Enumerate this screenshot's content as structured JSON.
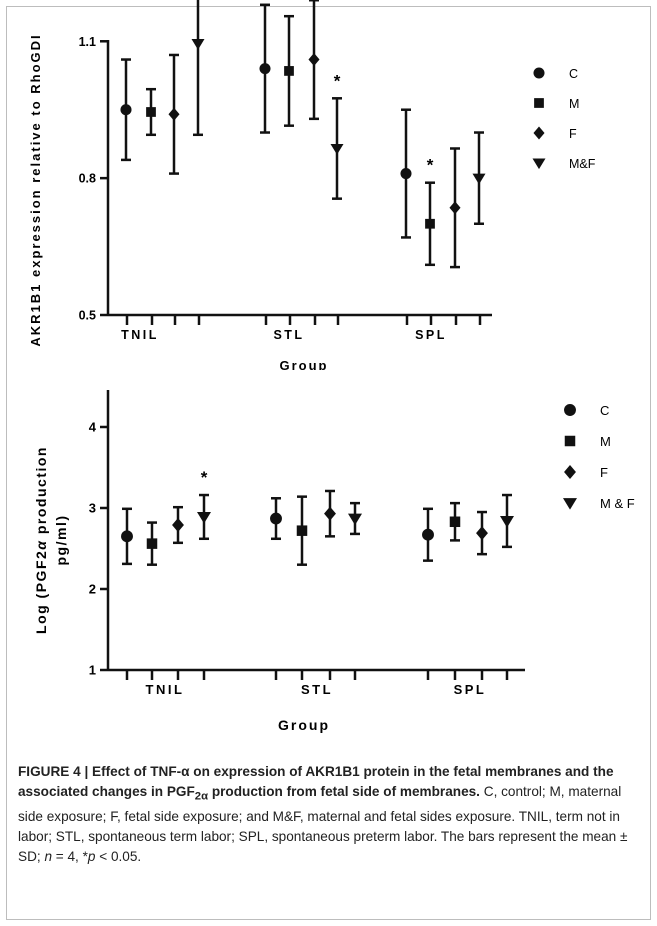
{
  "chart_data": [
    {
      "type": "scatter",
      "title": "",
      "xlabel": "Group",
      "ylabel": "AKR1B1 expression relative to RhoGDI",
      "ylim": [
        0.5,
        1.5
      ],
      "yticks": [
        "0.5",
        "0.8",
        "1.1"
      ],
      "categories": [
        "TNIL",
        "STL",
        "SPL"
      ],
      "legend_position": "top-right",
      "series": [
        {
          "name": "C",
          "marker": "circle",
          "values": [
            0.95,
            1.04,
            0.81
          ],
          "sd": [
            0.11,
            0.14,
            0.14
          ]
        },
        {
          "name": "M",
          "marker": "square",
          "values": [
            0.945,
            1.035,
            0.7
          ],
          "sd": [
            0.05,
            0.12,
            0.09
          ]
        },
        {
          "name": "F",
          "marker": "diamond",
          "values": [
            0.94,
            1.06,
            0.735
          ],
          "sd": [
            0.13,
            0.13,
            0.13
          ]
        },
        {
          "name": "M&F",
          "marker": "triangle-down",
          "values": [
            1.095,
            0.865,
            0.8
          ],
          "sd": [
            0.2,
            0.11,
            0.1
          ]
        }
      ],
      "significance": [
        {
          "series": "M&F",
          "category": "TNIL",
          "text": "*"
        },
        {
          "series": "M&F",
          "category": "STL",
          "text": "*"
        },
        {
          "series": "M",
          "category": "SPL",
          "text": "*"
        }
      ]
    },
    {
      "type": "scatter",
      "title": "",
      "xlabel": "Group",
      "ylabel_main": "Log (PGF2",
      "ylabel_alpha": "α",
      "ylabel_rest": " production",
      "ylabel_line2": "pg/ml)",
      "ylim": [
        1,
        4.5
      ],
      "yticks": [
        "1",
        "2",
        "3",
        "4"
      ],
      "categories": [
        "TNIL",
        "STL",
        "SPL"
      ],
      "legend_position": "top-right",
      "series": [
        {
          "name": "C",
          "marker": "circle",
          "values": [
            2.65,
            2.87,
            2.67
          ],
          "sd": [
            0.34,
            0.25,
            0.32
          ]
        },
        {
          "name": "M",
          "marker": "square",
          "values": [
            2.56,
            2.72,
            2.83
          ],
          "sd": [
            0.26,
            0.42,
            0.23
          ]
        },
        {
          "name": "F",
          "marker": "diamond",
          "values": [
            2.79,
            2.93,
            2.69
          ],
          "sd": [
            0.22,
            0.28,
            0.26
          ]
        },
        {
          "name": "M & F",
          "marker": "triangle-down",
          "values": [
            2.89,
            2.87,
            2.84
          ],
          "sd": [
            0.27,
            0.19,
            0.32
          ]
        }
      ],
      "significance": [
        {
          "series": "M & F",
          "category": "TNIL",
          "text": "*"
        }
      ]
    }
  ],
  "caption": {
    "lead": "FIGURE 4 | Effect of TNF-",
    "alpha": "α",
    "mid": " on expression of AKR1B1 protein in the fetal membranes and the associated changes in PGF",
    "sub": "2α",
    "tail_bold": " production from fetal side of membranes.",
    "body": " C, control; M, maternal side exposure; F, fetal side exposure; and M&F, maternal and fetal sides exposure. TNIL, term not in labor; STL, spontaneous term labor; SPL, spontaneous preterm labor. The bars represent the mean ± SD; ",
    "n_var": "n",
    "n_text": " = 4, *",
    "p_var": "p",
    "p_text": " < 0.05."
  }
}
